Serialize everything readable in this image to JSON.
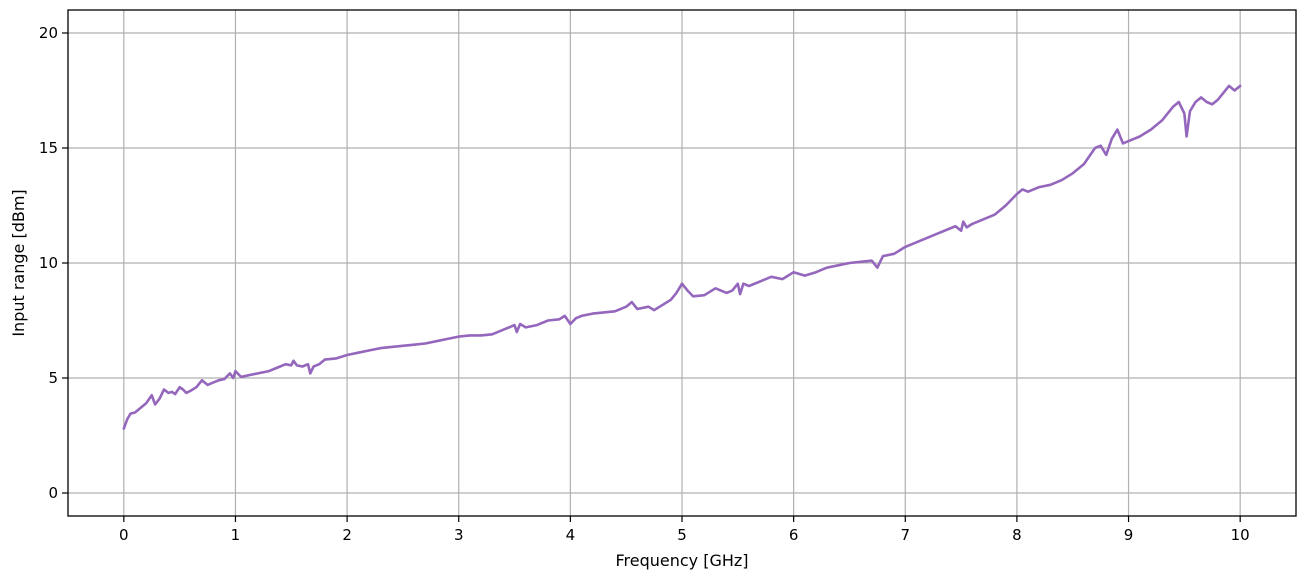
{
  "chart_data": {
    "type": "line",
    "title": "",
    "xlabel": "Frequency [GHz]",
    "ylabel": "Input range [dBm]",
    "xlim": [
      -0.5,
      10.5
    ],
    "ylim": [
      -1,
      21
    ],
    "xticks": [
      0,
      1,
      2,
      3,
      4,
      5,
      6,
      7,
      8,
      9,
      10
    ],
    "yticks": [
      0,
      5,
      10,
      15,
      20
    ],
    "grid": true,
    "legend": "none",
    "series": [
      {
        "color": "#9467bd",
        "x": [
          0.0,
          0.03,
          0.06,
          0.1,
          0.15,
          0.2,
          0.25,
          0.28,
          0.32,
          0.36,
          0.4,
          0.43,
          0.46,
          0.5,
          0.53,
          0.56,
          0.6,
          0.65,
          0.7,
          0.75,
          0.8,
          0.85,
          0.9,
          0.95,
          0.98,
          1.0,
          1.05,
          1.1,
          1.2,
          1.3,
          1.4,
          1.45,
          1.5,
          1.52,
          1.55,
          1.6,
          1.65,
          1.67,
          1.7,
          1.75,
          1.8,
          1.9,
          2.0,
          2.1,
          2.2,
          2.3,
          2.4,
          2.5,
          2.6,
          2.7,
          2.75,
          2.8,
          2.9,
          3.0,
          3.1,
          3.2,
          3.3,
          3.4,
          3.5,
          3.52,
          3.55,
          3.6,
          3.7,
          3.8,
          3.9,
          3.95,
          4.0,
          4.05,
          4.1,
          4.2,
          4.3,
          4.4,
          4.5,
          4.55,
          4.6,
          4.7,
          4.75,
          4.8,
          4.9,
          4.95,
          5.0,
          5.05,
          5.1,
          5.2,
          5.3,
          5.4,
          5.45,
          5.5,
          5.52,
          5.55,
          5.6,
          5.7,
          5.8,
          5.9,
          6.0,
          6.1,
          6.2,
          6.3,
          6.4,
          6.5,
          6.6,
          6.7,
          6.75,
          6.8,
          6.9,
          7.0,
          7.1,
          7.2,
          7.3,
          7.4,
          7.45,
          7.5,
          7.52,
          7.55,
          7.6,
          7.7,
          7.8,
          7.9,
          8.0,
          8.05,
          8.1,
          8.2,
          8.3,
          8.4,
          8.5,
          8.6,
          8.7,
          8.75,
          8.8,
          8.85,
          8.9,
          8.95,
          9.0,
          9.1,
          9.2,
          9.3,
          9.4,
          9.45,
          9.5,
          9.52,
          9.55,
          9.6,
          9.65,
          9.7,
          9.75,
          9.8,
          9.85,
          9.9,
          9.95,
          10.0
        ],
        "y": [
          2.8,
          3.2,
          3.45,
          3.5,
          3.7,
          3.9,
          4.25,
          3.85,
          4.1,
          4.5,
          4.35,
          4.4,
          4.3,
          4.6,
          4.5,
          4.35,
          4.45,
          4.6,
          4.9,
          4.7,
          4.8,
          4.9,
          4.95,
          5.2,
          5.0,
          5.3,
          5.05,
          5.1,
          5.2,
          5.3,
          5.5,
          5.6,
          5.55,
          5.75,
          5.55,
          5.5,
          5.6,
          5.2,
          5.5,
          5.6,
          5.8,
          5.85,
          6.0,
          6.1,
          6.2,
          6.3,
          6.35,
          6.4,
          6.45,
          6.5,
          6.55,
          6.6,
          6.7,
          6.8,
          6.85,
          6.85,
          6.9,
          7.1,
          7.3,
          7.0,
          7.35,
          7.2,
          7.3,
          7.5,
          7.55,
          7.7,
          7.35,
          7.6,
          7.7,
          7.8,
          7.85,
          7.9,
          8.1,
          8.3,
          8.0,
          8.1,
          7.95,
          8.1,
          8.4,
          8.7,
          9.1,
          8.8,
          8.55,
          8.6,
          8.9,
          8.7,
          8.8,
          9.1,
          8.65,
          9.1,
          9.0,
          9.2,
          9.4,
          9.3,
          9.6,
          9.45,
          9.6,
          9.8,
          9.9,
          10.0,
          10.05,
          10.1,
          9.8,
          10.3,
          10.4,
          10.7,
          10.9,
          11.1,
          11.3,
          11.5,
          11.6,
          11.4,
          11.8,
          11.55,
          11.7,
          11.9,
          12.1,
          12.5,
          13.0,
          13.2,
          13.1,
          13.3,
          13.4,
          13.6,
          13.9,
          14.3,
          15.0,
          15.1,
          14.7,
          15.4,
          15.8,
          15.2,
          15.3,
          15.5,
          15.8,
          16.2,
          16.8,
          17.0,
          16.5,
          15.5,
          16.6,
          17.0,
          17.2,
          17.0,
          16.9,
          17.1,
          17.4,
          17.7,
          17.5,
          17.7
        ]
      }
    ]
  }
}
